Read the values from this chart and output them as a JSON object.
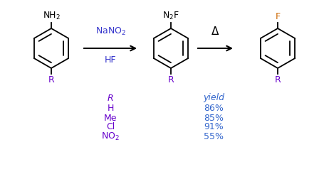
{
  "bg_color": "#ffffff",
  "ring_color": "#000000",
  "nh2_color": "#000000",
  "r_group_color": "#6600cc",
  "f_color": "#cc6600",
  "yield_color": "#3366cc",
  "reagent_color": "#3333cc",
  "arrow_color": "#000000",
  "r_values": [
    "R",
    "H",
    "Me",
    "Cl",
    "NO2"
  ],
  "yield_values": [
    "yield",
    "86%",
    "85%",
    "91%",
    "55%"
  ],
  "font_size_mol": 9,
  "font_size_table": 9,
  "font_size_reagent": 9
}
